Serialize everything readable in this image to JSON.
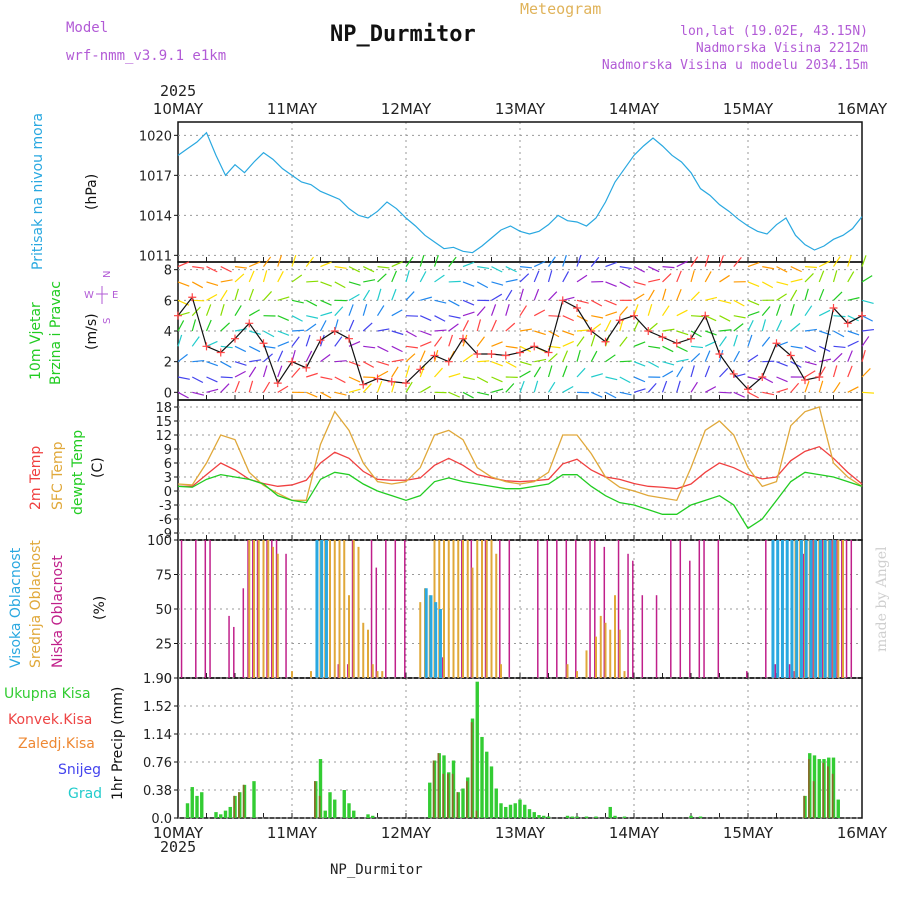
{
  "header": {
    "model_label": "Model",
    "model_name": "wrf-nmm_v3.9.1 e1km",
    "title": "NP_Durmitor",
    "subtitle": "Meteogram",
    "coords": "lon,lat (19.02E, 43.15N)",
    "altitude": "Nadmorska Visina 2212m",
    "model_altitude": "Nadmorska Visina u modelu 2034.15m",
    "year_top": "2025",
    "year_bottom": "2025",
    "footer_station": "NP_Durmitor",
    "credit": "made by Angel"
  },
  "colors": {
    "pressure": "#29a8e0",
    "temp_2m": "#f04040",
    "sfc_temp": "#e0a83a",
    "dewpoint": "#22cc22",
    "high_cloud": "#2aa8e0",
    "mid_cloud": "#e0a83a",
    "low_cloud": "#c0208a",
    "total_precip": "#33cc33",
    "conv_precip": "#ee4444",
    "frozen_precip": "#ee8833",
    "snow": "#4444ee",
    "graupel": "#22cccc",
    "wind_label": "#22cc22",
    "compass": "#b25bd6"
  },
  "x_axis": {
    "days": [
      "10MAY",
      "11MAY",
      "12MAY",
      "13MAY",
      "14MAY",
      "15MAY",
      "16MAY"
    ]
  },
  "panels": {
    "pressure": {
      "ylabel": "Pritisak na nivou mora",
      "unit": "(hPa)"
    },
    "wind": {
      "ylabel1": "10m Vjetar",
      "ylabel2": "Brzina i Pravac",
      "unit": "(m/s)",
      "compass_n": "N",
      "compass_w": "W",
      "compass_e": "E",
      "compass_s": "S"
    },
    "temp": {
      "ylabel1": "2m Temp",
      "ylabel2": "SFC Temp",
      "ylabel3": "dewpt Temp",
      "unit": "(C)"
    },
    "cloud": {
      "ylabel1": "Visoka Oblacnost",
      "ylabel2": "Srednja Oblacnost",
      "ylabel3": "Niska Oblacnost",
      "unit": "(%)"
    },
    "precip": {
      "unit": "1hr Precip (mm)",
      "legend": [
        "Ukupna Kisa",
        "Konvek.Kisa",
        "Zaledj.Kisa",
        "Snijeg",
        "Grad"
      ]
    }
  },
  "chart_data": [
    {
      "type": "line",
      "name": "pressure",
      "x_hours": [
        0,
        2,
        4,
        6,
        8,
        10,
        12,
        14,
        16,
        18,
        20,
        22,
        24,
        26,
        28,
        30,
        32,
        34,
        36,
        38,
        40,
        42,
        44,
        46,
        48,
        50,
        52,
        54,
        56,
        58,
        60,
        62,
        64,
        66,
        68,
        70,
        72,
        74,
        76,
        78,
        80,
        82,
        84,
        86,
        88,
        90,
        92,
        94,
        96,
        98,
        100,
        102,
        104,
        106,
        108,
        110,
        112,
        114,
        116,
        118,
        120,
        122,
        124,
        126,
        128,
        130,
        132,
        134,
        136,
        138,
        140,
        142,
        144
      ],
      "series": [
        {
          "values": [
            1018.5,
            1019,
            1019.5,
            1020.2,
            1018.5,
            1017,
            1017.8,
            1017.2,
            1018,
            1018.7,
            1018.2,
            1017.5,
            1017,
            1016.5,
            1016.3,
            1015.8,
            1015.5,
            1015.2,
            1014.5,
            1014,
            1013.8,
            1014.3,
            1015,
            1014.5,
            1013.8,
            1013.2,
            1012.5,
            1012,
            1011.5,
            1011.6,
            1011.3,
            1011.2,
            1011.7,
            1012.3,
            1012.9,
            1013.2,
            1012.8,
            1012.6,
            1012.8,
            1013.3,
            1014,
            1013.6,
            1013.5,
            1013.2,
            1013.8,
            1015,
            1016.5,
            1017.5,
            1018.5,
            1019.2,
            1019.8,
            1019.2,
            1018.5,
            1018,
            1017.2,
            1016,
            1015.5,
            1014.8,
            1014.3,
            1013.7,
            1013.2,
            1012.8,
            1012.6,
            1013.3,
            1013.8,
            1012.5,
            1011.8,
            1011.4,
            1011.7,
            1012.2,
            1012.5,
            1013,
            1013.9
          ]
        }
      ],
      "ylim": [
        1010.5,
        1021
      ],
      "yticks": [
        1011,
        1014,
        1017,
        1020
      ]
    },
    {
      "type": "line",
      "name": "wind_speed",
      "x_hours": [
        0,
        3,
        6,
        9,
        12,
        15,
        18,
        21,
        24,
        27,
        30,
        33,
        36,
        39,
        42,
        45,
        48,
        51,
        54,
        57,
        60,
        63,
        66,
        69,
        72,
        75,
        78,
        81,
        84,
        87,
        90,
        93,
        96,
        99,
        102,
        105,
        108,
        111,
        114,
        117,
        120,
        123,
        126,
        129,
        132,
        135,
        138,
        141,
        144
      ],
      "series": [
        {
          "values": [
            5,
            6.2,
            3,
            2.6,
            3.5,
            4.5,
            3.2,
            0.6,
            2,
            1.6,
            3.4,
            4,
            3.5,
            0.5,
            0.9,
            0.7,
            0.6,
            1.5,
            2.4,
            2,
            3.5,
            2.5,
            2.5,
            2.4,
            2.6,
            3,
            2.6,
            6,
            5.5,
            4,
            3.3,
            4.7,
            5,
            4,
            3.6,
            3.2,
            3.5,
            5,
            2.5,
            1.2,
            0.2,
            1,
            3.2,
            2.4,
            0.8,
            1,
            5.5,
            4.5,
            5
          ]
        }
      ],
      "ylim": [
        -0.5,
        8.5
      ],
      "yticks": [
        0,
        2,
        4,
        6,
        8
      ]
    },
    {
      "type": "line",
      "name": "temperature",
      "x_hours": [
        0,
        3,
        6,
        9,
        12,
        15,
        18,
        21,
        24,
        27,
        30,
        33,
        36,
        39,
        42,
        45,
        48,
        51,
        54,
        57,
        60,
        63,
        66,
        69,
        72,
        75,
        78,
        81,
        84,
        87,
        90,
        93,
        96,
        99,
        102,
        105,
        108,
        111,
        114,
        117,
        120,
        123,
        126,
        129,
        132,
        135,
        138,
        141,
        144
      ],
      "series": [
        {
          "values": [
            1,
            1,
            3.5,
            6,
            4.5,
            2.5,
            1.6,
            1,
            1.3,
            2.3,
            6,
            8.3,
            7,
            4.2,
            2.5,
            2.3,
            2.3,
            2.8,
            5.5,
            7,
            5.5,
            3.5,
            2.8,
            2.2,
            2,
            2.2,
            2.5,
            5.8,
            6.8,
            4.5,
            3,
            2.5,
            1.6,
            1,
            0.8,
            0.5,
            1.5,
            4,
            6,
            5,
            3.5,
            2.6,
            3,
            6.5,
            8.5,
            9.5,
            7,
            4,
            1.5
          ]
        },
        {
          "values": [
            1.5,
            1.3,
            6,
            12,
            11,
            4,
            1.2,
            -0.5,
            -2,
            -2,
            10,
            17,
            13,
            6,
            2,
            1.5,
            2,
            5,
            12,
            13,
            11,
            5,
            3,
            2,
            1.5,
            2,
            4,
            12,
            12,
            8,
            3,
            0.8,
            0,
            -1,
            -1.5,
            -2,
            5,
            13,
            15,
            12,
            5,
            1,
            2,
            14,
            17,
            18,
            6,
            3,
            1
          ]
        },
        {
          "values": [
            1,
            0.8,
            2.5,
            3.5,
            3,
            2.5,
            1.5,
            -1,
            -2,
            -2.5,
            2.5,
            4,
            3.5,
            1.5,
            0,
            -1,
            -2,
            -1,
            2,
            2.8,
            2,
            1.5,
            1,
            0.5,
            0.5,
            1,
            1.5,
            3.5,
            3.5,
            1,
            -1,
            -2.5,
            -3,
            -4,
            -5,
            -5,
            -3,
            -2,
            -1,
            -3,
            -8,
            -6,
            -2,
            2,
            4,
            3.5,
            3,
            2,
            1
          ]
        }
      ],
      "ylim": [
        -10.5,
        19.5
      ],
      "yticks": [
        -9,
        -6,
        -3,
        0,
        3,
        6,
        9,
        12,
        15,
        18
      ]
    },
    {
      "type": "bar",
      "name": "cloud_cover",
      "ylim": [
        0,
        100
      ],
      "yticks": [
        0,
        25,
        50,
        75,
        100
      ],
      "series": [
        {
          "hours": [
            1,
            4,
            6,
            7,
            11,
            12,
            14,
            15,
            16,
            17,
            19,
            20,
            21,
            23,
            34,
            36,
            37,
            41,
            42,
            44,
            46,
            48,
            56,
            60,
            62,
            65,
            68,
            70,
            76,
            78,
            80,
            82,
            84,
            87,
            88,
            90,
            93,
            95,
            96,
            98,
            101,
            104,
            106,
            108,
            110,
            111,
            114,
            120,
            124,
            126,
            129,
            130,
            132,
            134,
            136,
            138,
            139,
            140,
            141,
            142
          ],
          "values": [
            100,
            100,
            100,
            100,
            45,
            37,
            65,
            100,
            100,
            100,
            100,
            100,
            100,
            90,
            10,
            10,
            100,
            100,
            80,
            100,
            100,
            100,
            15,
            100,
            100,
            100,
            100,
            100,
            100,
            100,
            100,
            100,
            100,
            100,
            100,
            95,
            100,
            90,
            85,
            60,
            60,
            100,
            100,
            85,
            100,
            100,
            100,
            5,
            100,
            10,
            10,
            5,
            90,
            100,
            100,
            100,
            100,
            100,
            100,
            100
          ]
        },
        {
          "hours": [
            15,
            16,
            17,
            18,
            19,
            20,
            21,
            24,
            28,
            30,
            31,
            32,
            33,
            34,
            35,
            36,
            37,
            38,
            39,
            40,
            41,
            42,
            43,
            51,
            52,
            53,
            54,
            55,
            56,
            57,
            58,
            59,
            60,
            61,
            62,
            63,
            64,
            65,
            66,
            67,
            68,
            82,
            84,
            86,
            88,
            89,
            90,
            91,
            92,
            93,
            94,
            130,
            131,
            132,
            133,
            134,
            135,
            136,
            137,
            138,
            139,
            140
          ],
          "values": [
            100,
            100,
            100,
            100,
            100,
            95,
            90,
            5,
            5,
            100,
            100,
            100,
            100,
            100,
            100,
            60,
            100,
            95,
            40,
            35,
            10,
            5,
            5,
            55,
            65,
            60,
            100,
            100,
            100,
            100,
            100,
            100,
            100,
            100,
            80,
            100,
            100,
            100,
            100,
            90,
            10,
            10,
            5,
            20,
            30,
            45,
            40,
            35,
            60,
            35,
            5,
            100,
            100,
            100,
            100,
            100,
            100,
            100,
            100,
            100,
            100,
            100
          ]
        },
        {
          "hours": [
            29,
            30,
            31,
            52,
            53,
            54,
            55,
            125,
            126,
            127,
            128,
            129,
            130,
            131,
            132,
            133,
            134,
            135,
            136,
            137,
            138
          ],
          "values": [
            100,
            100,
            100,
            65,
            60,
            55,
            50,
            100,
            100,
            100,
            100,
            100,
            100,
            100,
            100,
            100,
            100,
            100,
            100,
            100,
            100
          ]
        }
      ]
    },
    {
      "type": "bar",
      "name": "precipitation",
      "ylim": [
        0,
        1.9
      ],
      "yticks": [
        0,
        0.38,
        0.76,
        1.14,
        1.52,
        1.9
      ],
      "series": [
        {
          "name": "Ukupna Kisa",
          "hours": [
            2,
            3,
            4,
            5,
            8,
            9,
            10,
            11,
            12,
            13,
            14,
            16,
            29,
            30,
            31,
            32,
            33,
            35,
            36,
            37,
            40,
            41,
            53,
            54,
            55,
            56,
            57,
            58,
            59,
            60,
            61,
            62,
            63,
            64,
            65,
            66,
            67,
            68,
            69,
            70,
            71,
            72,
            73,
            74,
            75,
            76,
            77,
            78,
            82,
            83,
            84,
            86,
            88,
            91,
            92,
            94,
            108,
            110,
            132,
            133,
            134,
            135,
            136,
            137,
            138,
            139
          ],
          "values": [
            0.2,
            0.42,
            0.3,
            0.35,
            0.08,
            0.05,
            0.1,
            0.15,
            0.3,
            0.35,
            0.45,
            0.5,
            0.5,
            0.8,
            0.1,
            0.35,
            0.25,
            0.38,
            0.2,
            0.1,
            0.05,
            0.03,
            0.48,
            0.78,
            0.88,
            0.85,
            0.62,
            0.78,
            0.35,
            0.4,
            0.55,
            1.35,
            1.85,
            1.1,
            0.9,
            0.7,
            0.4,
            0.2,
            0.15,
            0.18,
            0.2,
            0.25,
            0.18,
            0.12,
            0.08,
            0.04,
            0.03,
            0.02,
            0.03,
            0.02,
            0.02,
            0.02,
            0.02,
            0.15,
            0.03,
            0.02,
            0.03,
            0.02,
            0.3,
            0.88,
            0.85,
            0.8,
            0.8,
            0.82,
            0.82,
            0.25
          ]
        },
        {
          "name": "Konvek.Kisa",
          "hours": [
            12,
            13,
            14,
            29,
            30,
            54,
            55,
            56,
            57,
            58,
            59,
            61,
            62,
            63,
            132,
            133,
            134,
            136,
            137,
            138
          ],
          "values": [
            0.3,
            0.35,
            0.45,
            0.5,
            0.3,
            0.78,
            0.88,
            0.6,
            0.6,
            0.6,
            0.35,
            0.5,
            1.3,
            0.1,
            0.3,
            0.8,
            0.5,
            0.75,
            0.7,
            0.6
          ]
        }
      ]
    }
  ]
}
